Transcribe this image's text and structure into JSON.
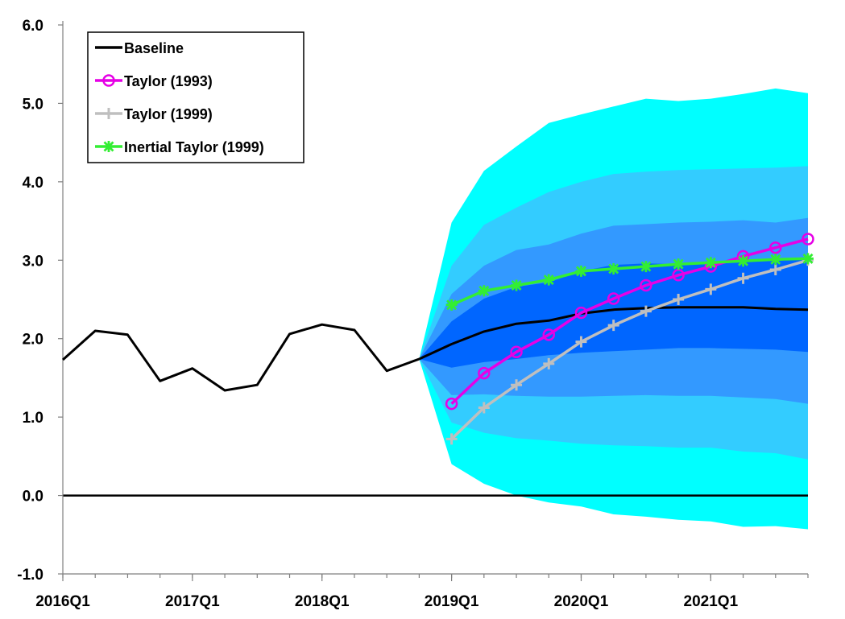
{
  "chart_data": {
    "type": "line",
    "title": "",
    "xlabel": "",
    "ylabel": "",
    "ylim": [
      -1.0,
      6.0
    ],
    "yticks": [
      "-1.0",
      "0.0",
      "1.0",
      "2.0",
      "3.0",
      "4.0",
      "5.0",
      "6.0"
    ],
    "x": [
      "2016Q1",
      "2016Q2",
      "2016Q3",
      "2016Q4",
      "2017Q1",
      "2017Q2",
      "2017Q3",
      "2017Q4",
      "2018Q1",
      "2018Q2",
      "2018Q3",
      "2018Q4",
      "2019Q1",
      "2019Q2",
      "2019Q3",
      "2019Q4",
      "2020Q1",
      "2020Q2",
      "2020Q3",
      "2020Q4",
      "2021Q1",
      "2021Q2",
      "2021Q3",
      "2021Q4"
    ],
    "xtick_labels": [
      "2016Q1",
      "2017Q1",
      "2018Q1",
      "2019Q1",
      "2020Q1",
      "2021Q1"
    ],
    "legend_position": "top-left",
    "grid": false,
    "series": [
      {
        "name": "Baseline",
        "color": "#000000",
        "marker": "none",
        "values": [
          1.73,
          2.1,
          2.05,
          1.46,
          1.62,
          1.34,
          1.41,
          2.06,
          2.18,
          2.11,
          1.59,
          1.74,
          1.93,
          2.09,
          2.19,
          2.23,
          2.32,
          2.37,
          2.39,
          2.4,
          2.4,
          2.4,
          2.38,
          2.37
        ]
      },
      {
        "name": "Taylor (1993)",
        "color": "#e600e6",
        "marker": "circle",
        "values": [
          null,
          null,
          null,
          null,
          null,
          null,
          null,
          null,
          null,
          null,
          null,
          null,
          1.17,
          1.56,
          1.83,
          2.05,
          2.33,
          2.51,
          2.68,
          2.81,
          2.92,
          3.05,
          3.16,
          3.27
        ]
      },
      {
        "name": "Taylor (1999)",
        "color": "#bfbfbf",
        "marker": "plus",
        "values": [
          null,
          null,
          null,
          null,
          null,
          null,
          null,
          null,
          null,
          null,
          null,
          null,
          0.72,
          1.12,
          1.41,
          1.68,
          1.96,
          2.17,
          2.35,
          2.5,
          2.63,
          2.77,
          2.88,
          3.0
        ]
      },
      {
        "name": "Inertial Taylor (1999)",
        "color": "#33ee33",
        "marker": "asterisk",
        "values": [
          null,
          null,
          null,
          null,
          null,
          null,
          null,
          null,
          null,
          null,
          null,
          null,
          2.43,
          2.61,
          2.68,
          2.75,
          2.86,
          2.89,
          2.92,
          2.95,
          2.97,
          2.99,
          3.01,
          3.02
        ]
      }
    ],
    "fan_bands": [
      {
        "color": "#00ffff",
        "upper": [
          1.74,
          3.48,
          4.14,
          4.45,
          4.75,
          4.86,
          4.96,
          5.06,
          5.03,
          5.06,
          5.12,
          5.19,
          5.13
        ],
        "lower": [
          1.74,
          0.4,
          0.15,
          0.0,
          -0.09,
          -0.14,
          -0.24,
          -0.27,
          -0.31,
          -0.33,
          -0.4,
          -0.39,
          -0.43
        ]
      },
      {
        "color": "#33ccff",
        "upper": [
          1.74,
          2.93,
          3.45,
          3.67,
          3.87,
          4.0,
          4.1,
          4.13,
          4.15,
          4.16,
          4.17,
          4.18,
          4.2
        ],
        "lower": [
          1.74,
          0.93,
          0.8,
          0.73,
          0.7,
          0.66,
          0.64,
          0.63,
          0.61,
          0.61,
          0.56,
          0.54,
          0.46
        ]
      },
      {
        "color": "#3399ff",
        "upper": [
          1.74,
          2.57,
          2.93,
          3.13,
          3.2,
          3.34,
          3.44,
          3.46,
          3.48,
          3.49,
          3.51,
          3.48,
          3.54
        ],
        "lower": [
          1.74,
          1.28,
          1.29,
          1.27,
          1.26,
          1.26,
          1.27,
          1.28,
          1.27,
          1.27,
          1.25,
          1.23,
          1.17
        ]
      },
      {
        "color": "#0066ff",
        "upper": [
          1.74,
          2.22,
          2.51,
          2.66,
          2.72,
          2.86,
          2.94,
          2.96,
          2.95,
          2.97,
          2.99,
          2.99,
          3.02
        ],
        "lower": [
          1.74,
          1.63,
          1.7,
          1.74,
          1.79,
          1.82,
          1.84,
          1.86,
          1.88,
          1.88,
          1.87,
          1.86,
          1.83
        ]
      }
    ]
  }
}
